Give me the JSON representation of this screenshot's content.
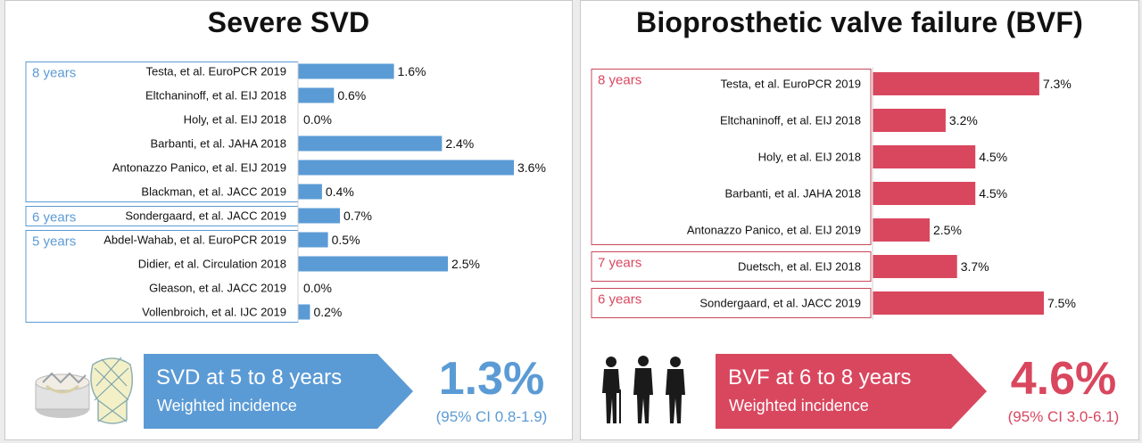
{
  "colors": {
    "svd": "#5b9bd5",
    "bvf": "#d9475f",
    "text": "#111111",
    "frame_svd": "#5b9bd5",
    "frame_bvf": "#c9485b"
  },
  "chart_data": [
    {
      "type": "bar",
      "orientation": "horizontal",
      "title": "Severe SVD",
      "xlim": [
        0,
        3.6
      ],
      "categories": [
        "Testa, et al. EuroPCR 2019",
        "Eltchaninoff, et al. EIJ 2018",
        "Holy, et al. EIJ 2018",
        "Barbanti, et al. JAHA 2018",
        "Antonazzo Panico, et al. EIJ 2019",
        "Blackman, et al. JACC 2019",
        "Sondergaard, et al. JACC 2019",
        "Abdel-Wahab, et al. EuroPCR 2019",
        "Didier, et al. Circulation 2018",
        "Gleason, et al. JACC 2019",
        "Vollenbroich, et al. IJC 2019"
      ],
      "values": [
        1.6,
        0.6,
        0.0,
        2.4,
        3.6,
        0.4,
        0.7,
        0.5,
        2.5,
        0.0,
        0.2
      ],
      "value_labels": [
        "1.6%",
        "0.6%",
        "0.0%",
        "2.4%",
        "3.6%",
        "0.4%",
        "0.7%",
        "0.5%",
        "2.5%",
        "0.0%",
        "0.2%"
      ],
      "groups": [
        {
          "label": "8 years",
          "from": 0,
          "to": 5
        },
        {
          "label": "6 years",
          "from": 6,
          "to": 6
        },
        {
          "label": "5 years",
          "from": 7,
          "to": 10
        }
      ]
    },
    {
      "type": "bar",
      "orientation": "horizontal",
      "title": "Bioprosthetic valve failure (BVF)",
      "xlim": [
        0,
        7.5
      ],
      "categories": [
        "Testa, et al. EuroPCR 2019",
        "Eltchaninoff, et al. EIJ 2018",
        "Holy, et al. EIJ 2018",
        "Barbanti, et al. JAHA 2018",
        "Antonazzo Panico, et al. EIJ 2019",
        "Duetsch, et al. EIJ 2018",
        "Sondergaard, et al. JACC 2019"
      ],
      "values": [
        7.3,
        3.2,
        4.5,
        4.5,
        2.5,
        3.7,
        7.5
      ],
      "value_labels": [
        "7.3%",
        "3.2%",
        "4.5%",
        "4.5%",
        "2.5%",
        "3.7%",
        "7.5%"
      ],
      "groups": [
        {
          "label": "8 years",
          "from": 0,
          "to": 4
        },
        {
          "label": "7 years",
          "from": 5,
          "to": 5
        },
        {
          "label": "6 years",
          "from": 6,
          "to": 6
        }
      ]
    }
  ],
  "summary": {
    "svd": {
      "line1": "SVD at 5 to 8 years",
      "line2": "Weighted incidence",
      "value": "1.3%",
      "ci": "(95% CI 0.8-1.9)"
    },
    "bvf": {
      "line1": "BVF at 6 to 8 years",
      "line2": "Weighted incidence",
      "value": "4.6%",
      "ci": "(95% CI 3.0-6.1)"
    }
  },
  "illustrations": {
    "left": "transcatheter-valves-illustration",
    "right": "elderly-people-silhouettes"
  }
}
